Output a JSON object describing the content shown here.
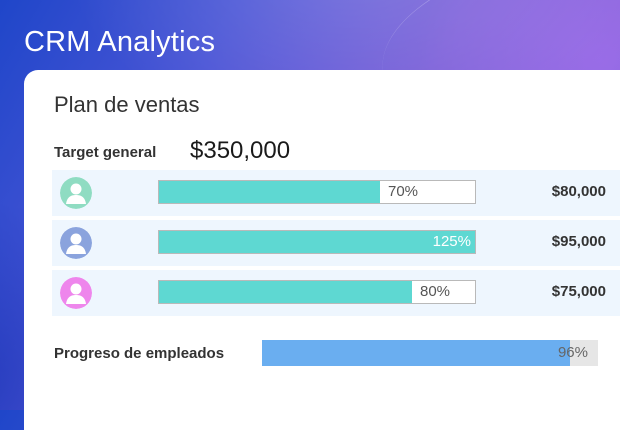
{
  "app": {
    "title": "CRM Analytics"
  },
  "card": {
    "title": "Plan de ventas",
    "target_label": "Target general",
    "target_value": "$350,000"
  },
  "employees": [
    {
      "avatar_color": "#8fdcc2",
      "avatar_icon": "user-avatar-icon",
      "progress": 70,
      "progress_label": "70%",
      "amount": "$80,000"
    },
    {
      "avatar_color": "#8aa3dd",
      "avatar_icon": "user-avatar-icon",
      "progress": 125,
      "progress_label": "125%",
      "amount": "$95,000"
    },
    {
      "avatar_color": "#ee86ec",
      "avatar_icon": "user-avatar-icon",
      "progress": 80,
      "progress_label": "80%",
      "amount": "$75,000"
    }
  ],
  "employee_progress": {
    "label": "Progreso de empleados",
    "value": 96,
    "value_label": "96%"
  },
  "colors": {
    "bar_fill": "#5ed8d2",
    "progress_fill": "#6aaef0",
    "row_background": "#eef6fe"
  }
}
